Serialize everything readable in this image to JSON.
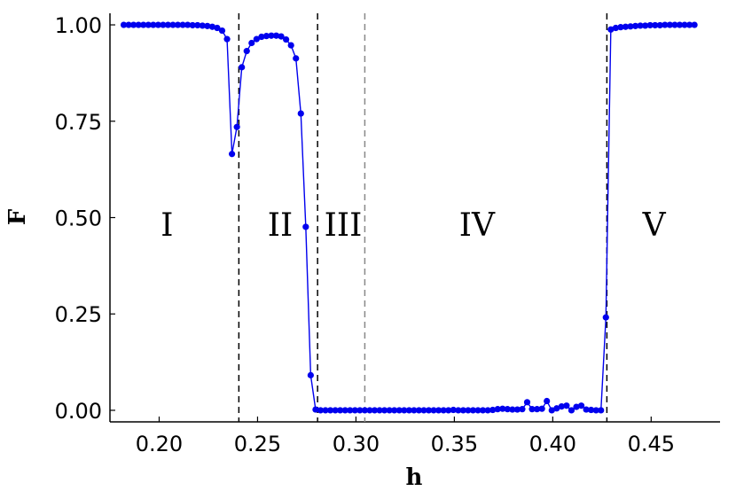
{
  "chart_data": {
    "type": "line",
    "xlabel": "h",
    "ylabel": "F",
    "xlim": [
      0.175,
      0.485
    ],
    "ylim": [
      -0.03,
      1.03
    ],
    "x_ticks": [
      "0.20",
      "0.25",
      "0.30",
      "0.35",
      "0.40",
      "0.45"
    ],
    "x_tick_values": [
      0.2,
      0.25,
      0.3,
      0.35,
      0.4,
      0.45
    ],
    "y_ticks": [
      "0.00",
      "0.25",
      "0.50",
      "0.75",
      "1.00"
    ],
    "y_tick_values": [
      0,
      0.25,
      0.5,
      0.75,
      1.0
    ],
    "grid": false,
    "series_color": "#0000ee",
    "boundary_lines": [
      {
        "x": 0.2405,
        "style": "dashed",
        "color": "#000000"
      },
      {
        "x": 0.2805,
        "style": "dashed",
        "color": "#000000"
      },
      {
        "x": 0.3045,
        "style": "dashed",
        "color": "#888888"
      },
      {
        "x": 0.4275,
        "style": "dashed",
        "color": "#000000"
      }
    ],
    "regions": [
      {
        "label": "I",
        "x": 0.204
      },
      {
        "label": "II",
        "x": 0.2615
      },
      {
        "label": "III",
        "x": 0.2935
      },
      {
        "label": "IV",
        "x": 0.3615
      },
      {
        "label": "V",
        "x": 0.4515
      }
    ],
    "region_label_y": 0.48,
    "series": [
      {
        "x": [
          0.182,
          0.1845,
          0.187,
          0.1895,
          0.192,
          0.1945,
          0.197,
          0.1995,
          0.202,
          0.2045,
          0.207,
          0.2095,
          0.212,
          0.2145,
          0.217,
          0.2195,
          0.222,
          0.2245,
          0.227,
          0.2295,
          0.232,
          0.2345,
          0.237,
          0.2395,
          0.242,
          0.2445,
          0.247,
          0.2495,
          0.252,
          0.2545,
          0.257,
          0.2595,
          0.262,
          0.2645,
          0.267,
          0.2695,
          0.272,
          0.2745,
          0.277,
          0.2795,
          0.282,
          0.2845,
          0.287,
          0.2895,
          0.292,
          0.2945,
          0.297,
          0.2995,
          0.302,
          0.3045,
          0.307,
          0.3095,
          0.312,
          0.3145,
          0.317,
          0.3195,
          0.322,
          0.3245,
          0.327,
          0.3295,
          0.332,
          0.3345,
          0.337,
          0.3395,
          0.342,
          0.3445,
          0.347,
          0.3495,
          0.352,
          0.3545,
          0.357,
          0.3595,
          0.362,
          0.3645,
          0.367,
          0.3695,
          0.372,
          0.3745,
          0.377,
          0.3795,
          0.382,
          0.3845,
          0.387,
          0.3895,
          0.392,
          0.3945,
          0.397,
          0.3995,
          0.402,
          0.4045,
          0.407,
          0.4095,
          0.412,
          0.4145,
          0.417,
          0.4195,
          0.422,
          0.4245,
          0.427,
          0.4295,
          0.432,
          0.4345,
          0.437,
          0.4395,
          0.442,
          0.4445,
          0.447,
          0.4495,
          0.452,
          0.4545,
          0.457,
          0.4595,
          0.462,
          0.4645,
          0.467,
          0.4695,
          0.472
        ],
        "y": [
          1.0,
          1.0,
          1.0,
          1.0,
          1.0,
          1.0,
          1.0,
          1.0,
          1.0,
          1.0,
          1.0,
          1.0,
          1.0,
          1.0,
          0.999,
          0.999,
          0.998,
          0.997,
          0.995,
          0.992,
          0.985,
          0.963,
          0.665,
          0.735,
          0.89,
          0.932,
          0.953,
          0.963,
          0.969,
          0.971,
          0.972,
          0.972,
          0.97,
          0.962,
          0.947,
          0.913,
          0.77,
          0.476,
          0.091,
          0.002,
          0.0,
          0.0,
          0.0,
          0.0,
          0.0,
          0.0,
          0.0,
          0.0,
          0.0,
          0.0,
          0.0,
          0.0,
          0.0,
          0.0,
          0.0,
          0.0,
          0.0,
          0.0,
          0.0,
          0.0,
          0.0,
          0.0,
          0.0,
          0.0,
          0.0,
          0.0,
          0.0,
          0.001,
          0.0,
          0.0,
          0.0,
          0.0,
          0.0,
          0.0,
          0.0,
          0.001,
          0.003,
          0.004,
          0.003,
          0.002,
          0.002,
          0.003,
          0.021,
          0.003,
          0.003,
          0.004,
          0.024,
          0.0,
          0.005,
          0.01,
          0.012,
          0.0,
          0.009,
          0.012,
          0.002,
          0.001,
          0.0,
          0.0,
          0.241,
          0.988,
          0.992,
          0.994,
          0.995,
          0.996,
          0.997,
          0.998,
          0.998,
          0.999,
          0.999,
          0.999,
          1.0,
          1.0,
          1.0,
          1.0,
          1.0,
          1.0,
          1.0
        ]
      }
    ]
  }
}
